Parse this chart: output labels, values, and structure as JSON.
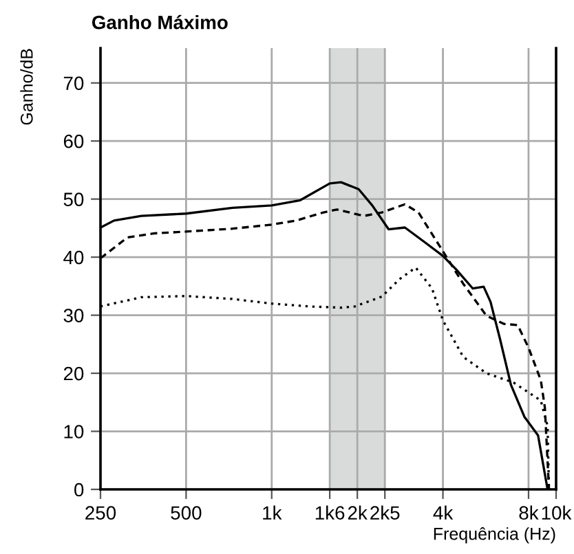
{
  "chart_data": {
    "type": "line",
    "title": "Ganho Máximo",
    "xlabel": "Frequência (Hz)",
    "ylabel": "Ganho/dB",
    "log": "x",
    "grid": true,
    "marker": "none",
    "xlim": [
      250,
      10000
    ],
    "ylim": [
      0,
      76
    ],
    "xticks": [
      250,
      500,
      {
        "value": 1000,
        "label": "1k"
      },
      {
        "value": 1600,
        "label": "1k6"
      },
      {
        "value": 2000,
        "label": "2k"
      },
      {
        "value": 2500,
        "label": "2k5"
      },
      {
        "value": 4000,
        "label": "4k"
      },
      {
        "value": 8000,
        "label": "8k"
      },
      {
        "value": 10000,
        "label": "10k"
      }
    ],
    "yticks": [
      0,
      10,
      20,
      30,
      40,
      50,
      60,
      70
    ],
    "bands": [
      {
        "axis": "x",
        "from": 1600,
        "to": 2500,
        "color": "#d9dbdb"
      }
    ],
    "series": [
      {
        "color": "#000000",
        "line_style": "solid",
        "x": [
          250,
          279,
          348,
          500,
          727,
          1000,
          1260,
          1600,
          1753,
          2022,
          2257,
          2576,
          2940,
          3468,
          4000,
          4467,
          5094,
          5563,
          5880,
          6350,
          6937,
          7737,
          8641,
          9333
        ],
        "values": [
          45.1,
          46.3,
          47.1,
          47.5,
          48.5,
          48.9,
          49.8,
          52.7,
          52.9,
          51.7,
          48.9,
          44.8,
          45.1,
          42.5,
          40.2,
          37.8,
          34.6,
          34.9,
          32.3,
          25.9,
          18.0,
          12.5,
          9.3,
          0
        ]
      },
      {
        "color": "#000000",
        "line_style": "dashed",
        "x": [
          250,
          311,
          388,
          500,
          727,
          1000,
          1219,
          1519,
          1694,
          2112,
          2439,
          2940,
          3281,
          4000,
          4717,
          5689,
          6561,
          7326,
          8000,
          8835,
          9130,
          9440
        ],
        "values": [
          39.8,
          43.4,
          44.1,
          44.4,
          44.9,
          45.6,
          46.3,
          47.7,
          48.2,
          47.1,
          47.7,
          49.1,
          47.7,
          41.0,
          35.4,
          29.9,
          28.5,
          28.3,
          24.4,
          18.8,
          14.1,
          0
        ]
      },
      {
        "color": "#000000",
        "line_style": "dotted",
        "x": [
          250,
          348,
          500,
          727,
          1000,
          1361,
          1753,
          1957,
          2439,
          2813,
          3210,
          3663,
          4000,
          4717,
          5689,
          7088,
          8835,
          9333,
          9440
        ],
        "values": [
          31.5,
          33.1,
          33.3,
          32.8,
          32.0,
          31.5,
          31.3,
          31.5,
          33.2,
          36.2,
          38.2,
          34.6,
          29.1,
          22.8,
          20.0,
          18.4,
          15.3,
          10.9,
          0
        ]
      }
    ]
  }
}
